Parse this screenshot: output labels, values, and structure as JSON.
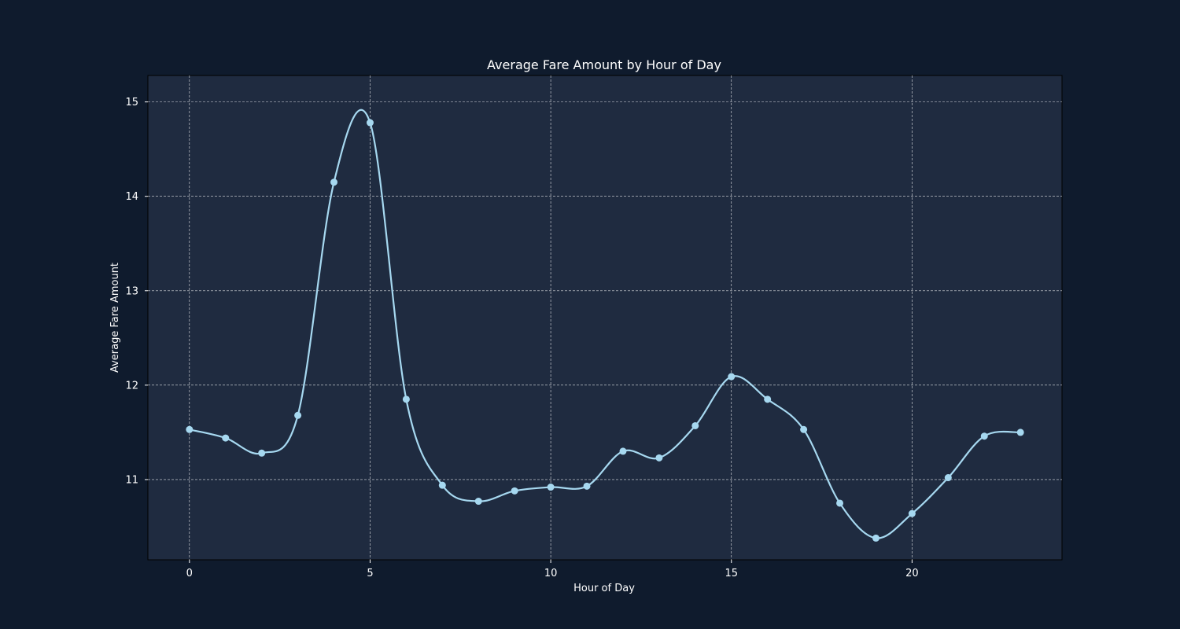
{
  "chart_data": {
    "type": "line",
    "title": "Average Fare Amount by Hour of Day",
    "xlabel": "Hour of Day",
    "ylabel": "Average Fare Amount",
    "x": [
      0,
      1,
      2,
      3,
      4,
      5,
      6,
      7,
      8,
      9,
      10,
      11,
      12,
      13,
      14,
      15,
      16,
      17,
      18,
      19,
      20,
      21,
      22,
      23
    ],
    "series": [
      {
        "values": [
          11.53,
          11.44,
          11.28,
          11.68,
          14.15,
          14.78,
          11.85,
          10.94,
          10.77,
          10.88,
          10.92,
          10.93,
          11.3,
          11.23,
          11.57,
          12.09,
          11.85,
          11.53,
          10.75,
          10.38,
          10.64,
          11.02,
          11.46,
          11.5
        ]
      }
    ],
    "xlim": [
      -1.15,
      24.15
    ],
    "ylim": [
      10.15,
      15.28
    ],
    "xticks": [
      0,
      5,
      10,
      15,
      20
    ],
    "yticks": [
      11,
      12,
      13,
      14,
      15
    ],
    "grid": true,
    "smooth": true,
    "colors": {
      "background": "#0f1b2d",
      "plot_background": "#1f2b40",
      "line": "#a6d8f0",
      "text": "#ffffff",
      "grid": "#ffffff"
    }
  }
}
